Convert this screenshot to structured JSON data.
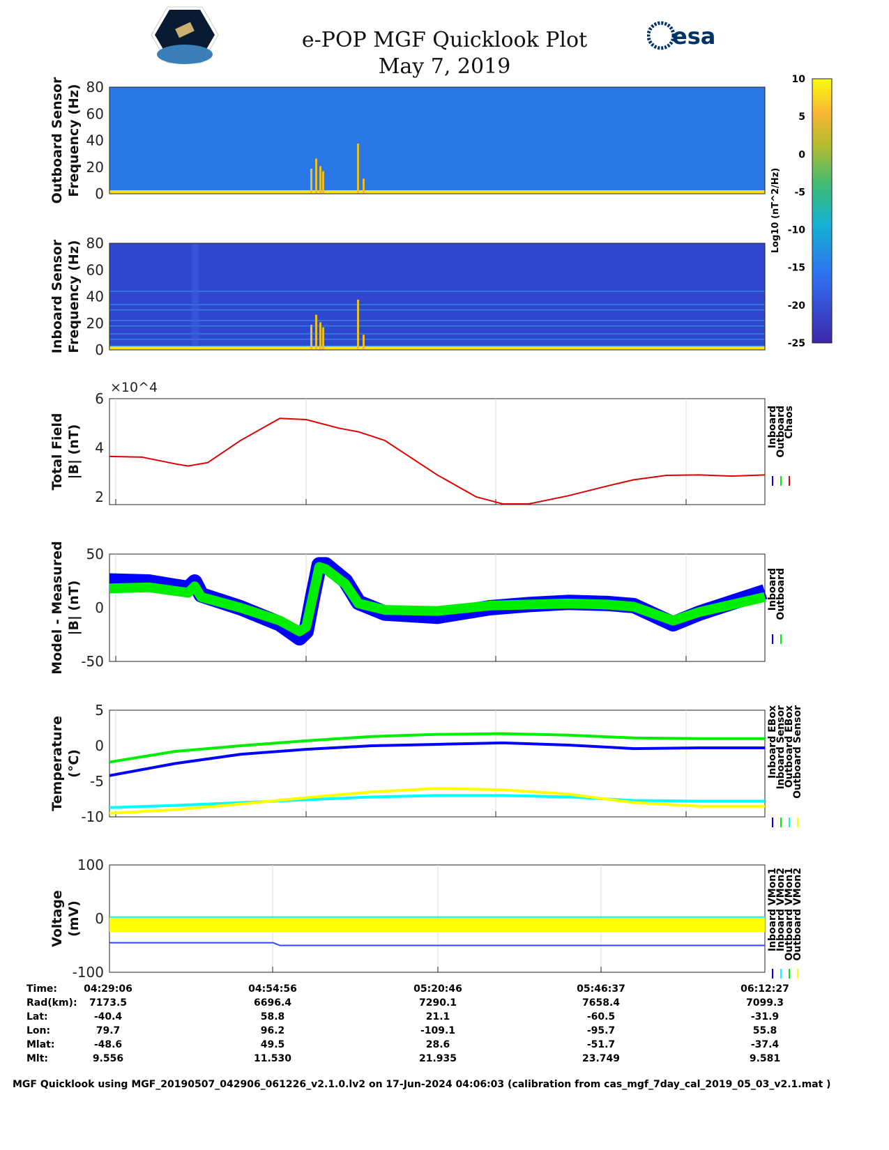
{
  "header": {
    "title": "e-POP MGF Quicklook Plot",
    "date": "May 7, 2019",
    "logo_left": "CASSIOPE",
    "logo_right": "esa"
  },
  "colors": {
    "inboard": "#0000ff",
    "outboard": "#00ee00",
    "chaos": "#dd0000",
    "cyan": "#00ffff",
    "yellow": "#ffff00"
  },
  "chart_data": [
    {
      "type": "heatmap",
      "name": "outboard-spectrogram",
      "ylabel": [
        "Outboard Sensor",
        "Frequency (Hz)"
      ],
      "ylim": [
        0,
        80
      ],
      "yticks": [
        0,
        20,
        40,
        60,
        80
      ]
    },
    {
      "type": "heatmap",
      "name": "inboard-spectrogram",
      "ylabel": [
        "Inboard Sensor",
        "Frequency (Hz)"
      ],
      "ylim": [
        0,
        80
      ],
      "yticks": [
        0,
        20,
        40,
        60,
        80
      ]
    },
    {
      "type": "colorbar",
      "label": "Log10 (nT^2/Hz)",
      "ylim": [
        -25,
        10
      ],
      "yticks": [
        10,
        5,
        0,
        -5,
        -10,
        -15,
        -20,
        -25
      ]
    },
    {
      "type": "line",
      "name": "total-field",
      "ylabel": [
        "Total Field",
        "|B| (nT)"
      ],
      "exponent": "×10^4",
      "ylim": [
        1.69,
        6
      ],
      "yticks": [
        2,
        4,
        6
      ],
      "legend": [
        "Inboard",
        "Outboard",
        "Chaos"
      ],
      "x": [
        0,
        0.05,
        0.1,
        0.12,
        0.15,
        0.2,
        0.26,
        0.3,
        0.35,
        0.38,
        0.42,
        0.5,
        0.56,
        0.6,
        0.64,
        0.7,
        0.76,
        0.8,
        0.85,
        0.9,
        0.95,
        1
      ],
      "series": [
        {
          "name": "Chaos",
          "values": [
            3.65,
            3.62,
            3.35,
            3.26,
            3.4,
            4.3,
            5.2,
            5.15,
            4.8,
            4.65,
            4.3,
            2.9,
            2.0,
            1.72,
            1.72,
            2.05,
            2.45,
            2.7,
            2.88,
            2.9,
            2.85,
            2.9
          ]
        }
      ]
    },
    {
      "type": "line",
      "name": "model-minus-measured",
      "ylabel": [
        "Model - Measured",
        "|B| (nT)"
      ],
      "ylim": [
        -50,
        50
      ],
      "yticks": [
        -50,
        0,
        50
      ],
      "legend": [
        "Inboard",
        "Outboard"
      ],
      "x": [
        0,
        0.06,
        0.12,
        0.13,
        0.14,
        0.2,
        0.26,
        0.29,
        0.3,
        0.31,
        0.32,
        0.33,
        0.36,
        0.38,
        0.42,
        0.5,
        0.58,
        0.64,
        0.7,
        0.76,
        0.8,
        0.86,
        0.9,
        0.95,
        1
      ],
      "series": [
        {
          "name": "Inboard",
          "values": [
            25,
            24,
            18,
            24,
            12,
            0,
            -15,
            -28,
            -22,
            10,
            40,
            40,
            25,
            5,
            -5,
            -8,
            0,
            3,
            5,
            4,
            2,
            -15,
            -5,
            5,
            15
          ]
        },
        {
          "name": "Outboard",
          "values": [
            18,
            19,
            14,
            20,
            10,
            0,
            -12,
            -22,
            -18,
            10,
            38,
            36,
            22,
            4,
            -2,
            -3,
            2,
            3,
            4,
            3,
            1,
            -12,
            -4,
            3,
            10
          ]
        }
      ]
    },
    {
      "type": "line",
      "name": "temperature",
      "ylabel": [
        "Temperature",
        "(°C)"
      ],
      "ylim": [
        -10,
        5
      ],
      "yticks": [
        -10,
        -5,
        0,
        5
      ],
      "legend": [
        "Inboard EBox",
        "Inboard Sensor",
        "Outboard EBox",
        "Outboard Sensor"
      ],
      "x": [
        0,
        0.1,
        0.2,
        0.3,
        0.4,
        0.5,
        0.6,
        0.7,
        0.8,
        0.9,
        1
      ],
      "series": [
        {
          "name": "Inboard EBox",
          "values": [
            -2.3,
            -0.8,
            0,
            0.7,
            1.3,
            1.6,
            1.7,
            1.5,
            1.1,
            1.0,
            1.0
          ]
        },
        {
          "name": "Inboard Sensor",
          "values": [
            -4.2,
            -2.5,
            -1.2,
            -0.5,
            0,
            0.2,
            0.4,
            0.1,
            -0.4,
            -0.3,
            -0.3
          ]
        },
        {
          "name": "Outboard EBox",
          "values": [
            -8.7,
            -8.4,
            -8.0,
            -7.6,
            -7.2,
            -7.0,
            -7.0,
            -7.2,
            -7.7,
            -7.8,
            -7.8
          ]
        },
        {
          "name": "Outboard Sensor",
          "values": [
            -9.5,
            -9.0,
            -8.2,
            -7.3,
            -6.5,
            -6.0,
            -6.2,
            -6.8,
            -8.0,
            -8.5,
            -8.5
          ]
        }
      ]
    },
    {
      "type": "line",
      "name": "voltage",
      "ylabel": [
        "Voltage",
        "(mV)"
      ],
      "ylim": [
        -100,
        100
      ],
      "yticks": [
        -100,
        0,
        100
      ],
      "legend": [
        "Inboard VMon1",
        "Inboard VMon2",
        "Outboard VMon1",
        "Outboard VMon2"
      ],
      "x": [
        0,
        0.25,
        0.26,
        0.5,
        0.75,
        1
      ],
      "series": [
        {
          "name": "Inboard VMon1",
          "values": [
            -45,
            -45,
            -50,
            -50,
            -50,
            -50
          ]
        },
        {
          "name": "Inboard VMon2",
          "values": [
            -12,
            -12,
            -12,
            -12,
            -12,
            -12
          ]
        },
        {
          "name": "Outboard VMon1",
          "values": [
            3,
            3,
            3,
            3,
            3,
            3
          ]
        },
        {
          "name": "Outboard VMon2",
          "values": [
            -12,
            -12,
            -12,
            -12,
            -12,
            -12
          ]
        }
      ]
    }
  ],
  "table": {
    "labels": [
      "Time:",
      "Rad(km):",
      "Lat:",
      "Lon:",
      "Mlat:",
      "Mlt:"
    ],
    "columns": [
      [
        "04:29:06",
        "7173.5",
        "-40.4",
        "79.7",
        "-48.6",
        "9.556"
      ],
      [
        "04:54:56",
        "6696.4",
        "58.8",
        "96.2",
        "49.5",
        "11.530"
      ],
      [
        "05:20:46",
        "7290.1",
        "21.1",
        "-109.1",
        "28.6",
        "21.935"
      ],
      [
        "05:46:37",
        "7658.4",
        "-60.5",
        "-95.7",
        "-51.7",
        "23.749"
      ],
      [
        "06:12:27",
        "7099.3",
        "-31.9",
        "55.8",
        "-37.4",
        "9.581"
      ]
    ]
  },
  "footer": "MGF Quicklook using MGF_20190507_042906_061226_v2.1.0.lv2 on 17-Jun-2024 04:06:03 (calibration from cas_mgf_7day_cal_2019_05_03_v2.1.mat )"
}
